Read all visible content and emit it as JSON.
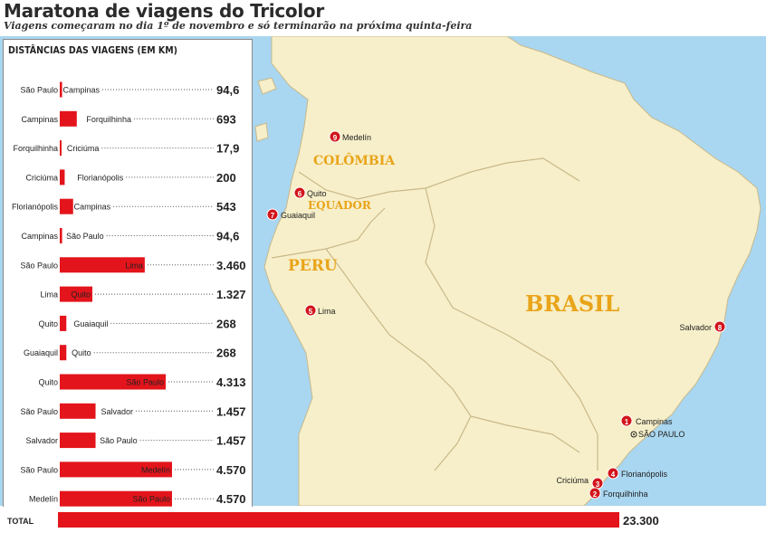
{
  "header": {
    "title": "Maratona de viagens do Tricolor",
    "subtitle": "Viagens começaram no dia 1º de novembro e só terminarão na próxima quinta-feira"
  },
  "colors": {
    "bar": "#e3141b",
    "ocean": "#a9d6f0",
    "land": "#f7efc9",
    "border": "#c9b98a",
    "country_label": "#e9a41a",
    "marker": "#d2141b"
  },
  "map": {
    "countries": [
      "COLÔMBIA",
      "EQUADOR",
      "PERU",
      "BRASIL"
    ],
    "markers": [
      {
        "num": "1",
        "label": "Campinas"
      },
      {
        "num": "2",
        "label": "Forquilhinha"
      },
      {
        "num": "3",
        "label": "Criciúma"
      },
      {
        "num": "4",
        "label": "Florianópolis"
      },
      {
        "num": "5",
        "label": "Lima"
      },
      {
        "num": "6",
        "label": "Quito"
      },
      {
        "num": "7",
        "label": "Guaiaquil"
      },
      {
        "num": "8",
        "label": "Salvador"
      },
      {
        "num": "9",
        "label": "Medelín"
      }
    ],
    "city_sp": "SÃO PAULO"
  },
  "chart_data": {
    "type": "bar",
    "title": "DISTÂNCIAS DAS VIAGENS (EM KM)",
    "rows": [
      {
        "from": "São Paulo",
        "to": "Campinas",
        "value": 94.6,
        "label": "94,6"
      },
      {
        "from": "Campinas",
        "to": "Forquilhinha",
        "value": 693,
        "label": "693"
      },
      {
        "from": "Forquilhinha",
        "to": "Criciúma",
        "value": 17.9,
        "label": "17,9"
      },
      {
        "from": "Criciúma",
        "to": "Florianópolis",
        "value": 200,
        "label": "200"
      },
      {
        "from": "Florianópolis",
        "to": "Campinas",
        "value": 543,
        "label": "543"
      },
      {
        "from": "Campinas",
        "to": "São Paulo",
        "value": 94.6,
        "label": "94,6"
      },
      {
        "from": "São Paulo",
        "to": "Lima",
        "value": 3460,
        "label": "3.460"
      },
      {
        "from": "Lima",
        "to": "Quito",
        "value": 1327,
        "label": "1.327"
      },
      {
        "from": "Quito",
        "to": "Guaiaquil",
        "value": 268,
        "label": "268"
      },
      {
        "from": "Guaiaquil",
        "to": "Quito",
        "value": 268,
        "label": "268"
      },
      {
        "from": "Quito",
        "to": "São Paulo",
        "value": 4313,
        "label": "4.313"
      },
      {
        "from": "São Paulo",
        "to": "Salvador",
        "value": 1457,
        "label": "1.457"
      },
      {
        "from": "Salvador",
        "to": "São Paulo",
        "value": 1457,
        "label": "1.457"
      },
      {
        "from": "São Paulo",
        "to": "Medelín",
        "value": 4570,
        "label": "4.570"
      },
      {
        "from": "Medelín",
        "to": "São Paulo",
        "value": 4570,
        "label": "4.570"
      }
    ],
    "total": {
      "label": "TOTAL",
      "value": 23300,
      "value_label": "23.300"
    }
  }
}
